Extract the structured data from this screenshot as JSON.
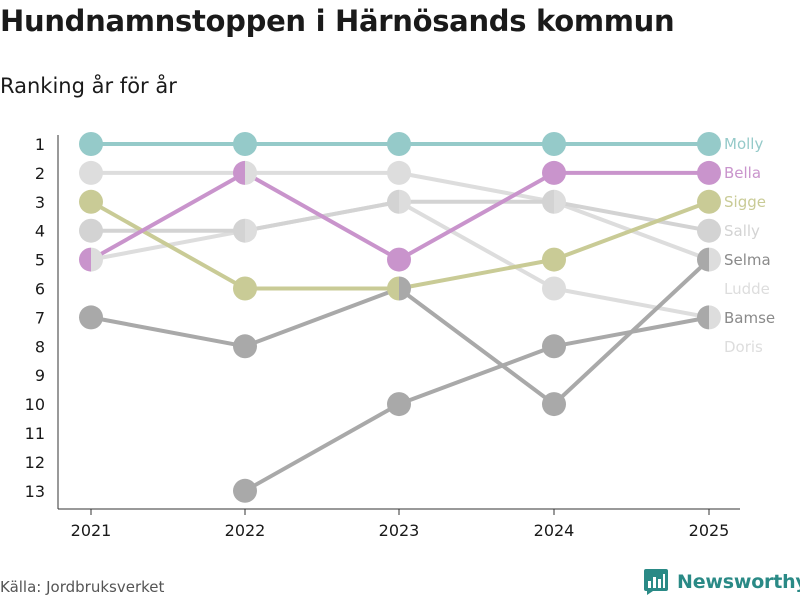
{
  "title": "Hundnamnstoppen i Härnösands kommun",
  "subtitle": "Ranking år för år",
  "source": "Källa: Jordbruksverket",
  "brand": {
    "name": "Newsworthy",
    "icon": "newsworthy-logo-icon",
    "color": "#2a8a86"
  },
  "chart_data": {
    "type": "line",
    "subtype": "bump",
    "x": [
      "2021",
      "2022",
      "2023",
      "2024",
      "2025"
    ],
    "y_ticks": [
      "1",
      "2",
      "3",
      "4",
      "5",
      "6",
      "7",
      "8",
      "9",
      "10",
      "11",
      "12",
      "13"
    ],
    "y_range": [
      1,
      13
    ],
    "y_reversed": true,
    "grid": false,
    "legend": "end-labels",
    "series": [
      {
        "name": "Molly",
        "color": "#95cac9",
        "values": [
          1,
          1,
          1,
          1,
          1
        ]
      },
      {
        "name": "Bella",
        "color": "#c994cc",
        "values": [
          5,
          2,
          5,
          2,
          2
        ]
      },
      {
        "name": "Sigge",
        "color": "#c9cb96",
        "values": [
          3,
          6,
          6,
          5,
          3
        ]
      },
      {
        "name": "Sally",
        "color": "#d3d3d3",
        "values": [
          4,
          4,
          3,
          3,
          4
        ]
      },
      {
        "name": "Selma",
        "color": "#a9a9a9",
        "values": [
          7,
          8,
          6,
          10,
          5
        ]
      },
      {
        "name": "Ludde",
        "color": "#dddddd",
        "values": [
          2,
          2,
          2,
          3,
          5
        ]
      },
      {
        "name": "Bamse",
        "color": "#a9a9a9",
        "values": [
          null,
          13,
          10,
          8,
          7
        ]
      },
      {
        "name": "Doris",
        "color": "#dddddd",
        "values": [
          5,
          4,
          3,
          6,
          7
        ]
      }
    ]
  }
}
